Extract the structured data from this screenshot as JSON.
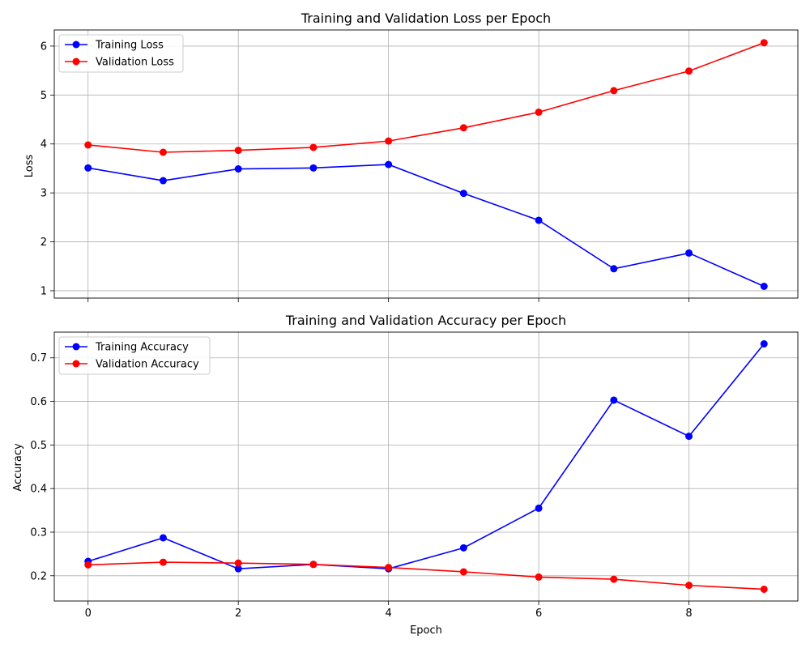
{
  "chart_data": [
    {
      "type": "line",
      "title": "Training and Validation Loss per Epoch",
      "xlabel": "",
      "ylabel": "Loss",
      "x": [
        0,
        1,
        2,
        3,
        4,
        5,
        6,
        7,
        8,
        9
      ],
      "xticks": [
        0,
        2,
        4,
        6,
        8
      ],
      "xlim": [
        -0.45,
        9.45
      ],
      "yticks": [
        1,
        2,
        3,
        4,
        5,
        6
      ],
      "ylim": [
        0.85,
        6.33
      ],
      "grid": true,
      "legend": "top-left",
      "series": [
        {
          "name": "Training Loss",
          "color": "#0000ff",
          "marker": "circle",
          "values": [
            3.51,
            3.25,
            3.49,
            3.51,
            3.58,
            2.99,
            2.44,
            1.45,
            1.77,
            1.09
          ]
        },
        {
          "name": "Validation Loss",
          "color": "#ff0000",
          "marker": "circle",
          "values": [
            3.98,
            3.83,
            3.87,
            3.93,
            4.06,
            4.33,
            4.65,
            5.09,
            5.49,
            6.07
          ]
        }
      ]
    },
    {
      "type": "line",
      "title": "Training and Validation Accuracy per Epoch",
      "xlabel": "Epoch",
      "ylabel": "Accuracy",
      "x": [
        0,
        1,
        2,
        3,
        4,
        5,
        6,
        7,
        8,
        9
      ],
      "xticks": [
        0,
        2,
        4,
        6,
        8
      ],
      "xlim": [
        -0.45,
        9.45
      ],
      "yticks": [
        0.2,
        0.3,
        0.4,
        0.5,
        0.6,
        0.7
      ],
      "ylim": [
        0.142,
        0.759
      ],
      "grid": true,
      "legend": "top-left",
      "series": [
        {
          "name": "Training Accuracy",
          "color": "#0000ff",
          "marker": "circle",
          "values": [
            0.233,
            0.287,
            0.216,
            0.226,
            0.216,
            0.264,
            0.355,
            0.603,
            0.52,
            0.732
          ]
        },
        {
          "name": "Validation Accuracy",
          "color": "#ff0000",
          "marker": "circle",
          "values": [
            0.225,
            0.231,
            0.229,
            0.226,
            0.219,
            0.209,
            0.197,
            0.192,
            0.178,
            0.169
          ]
        }
      ]
    }
  ]
}
